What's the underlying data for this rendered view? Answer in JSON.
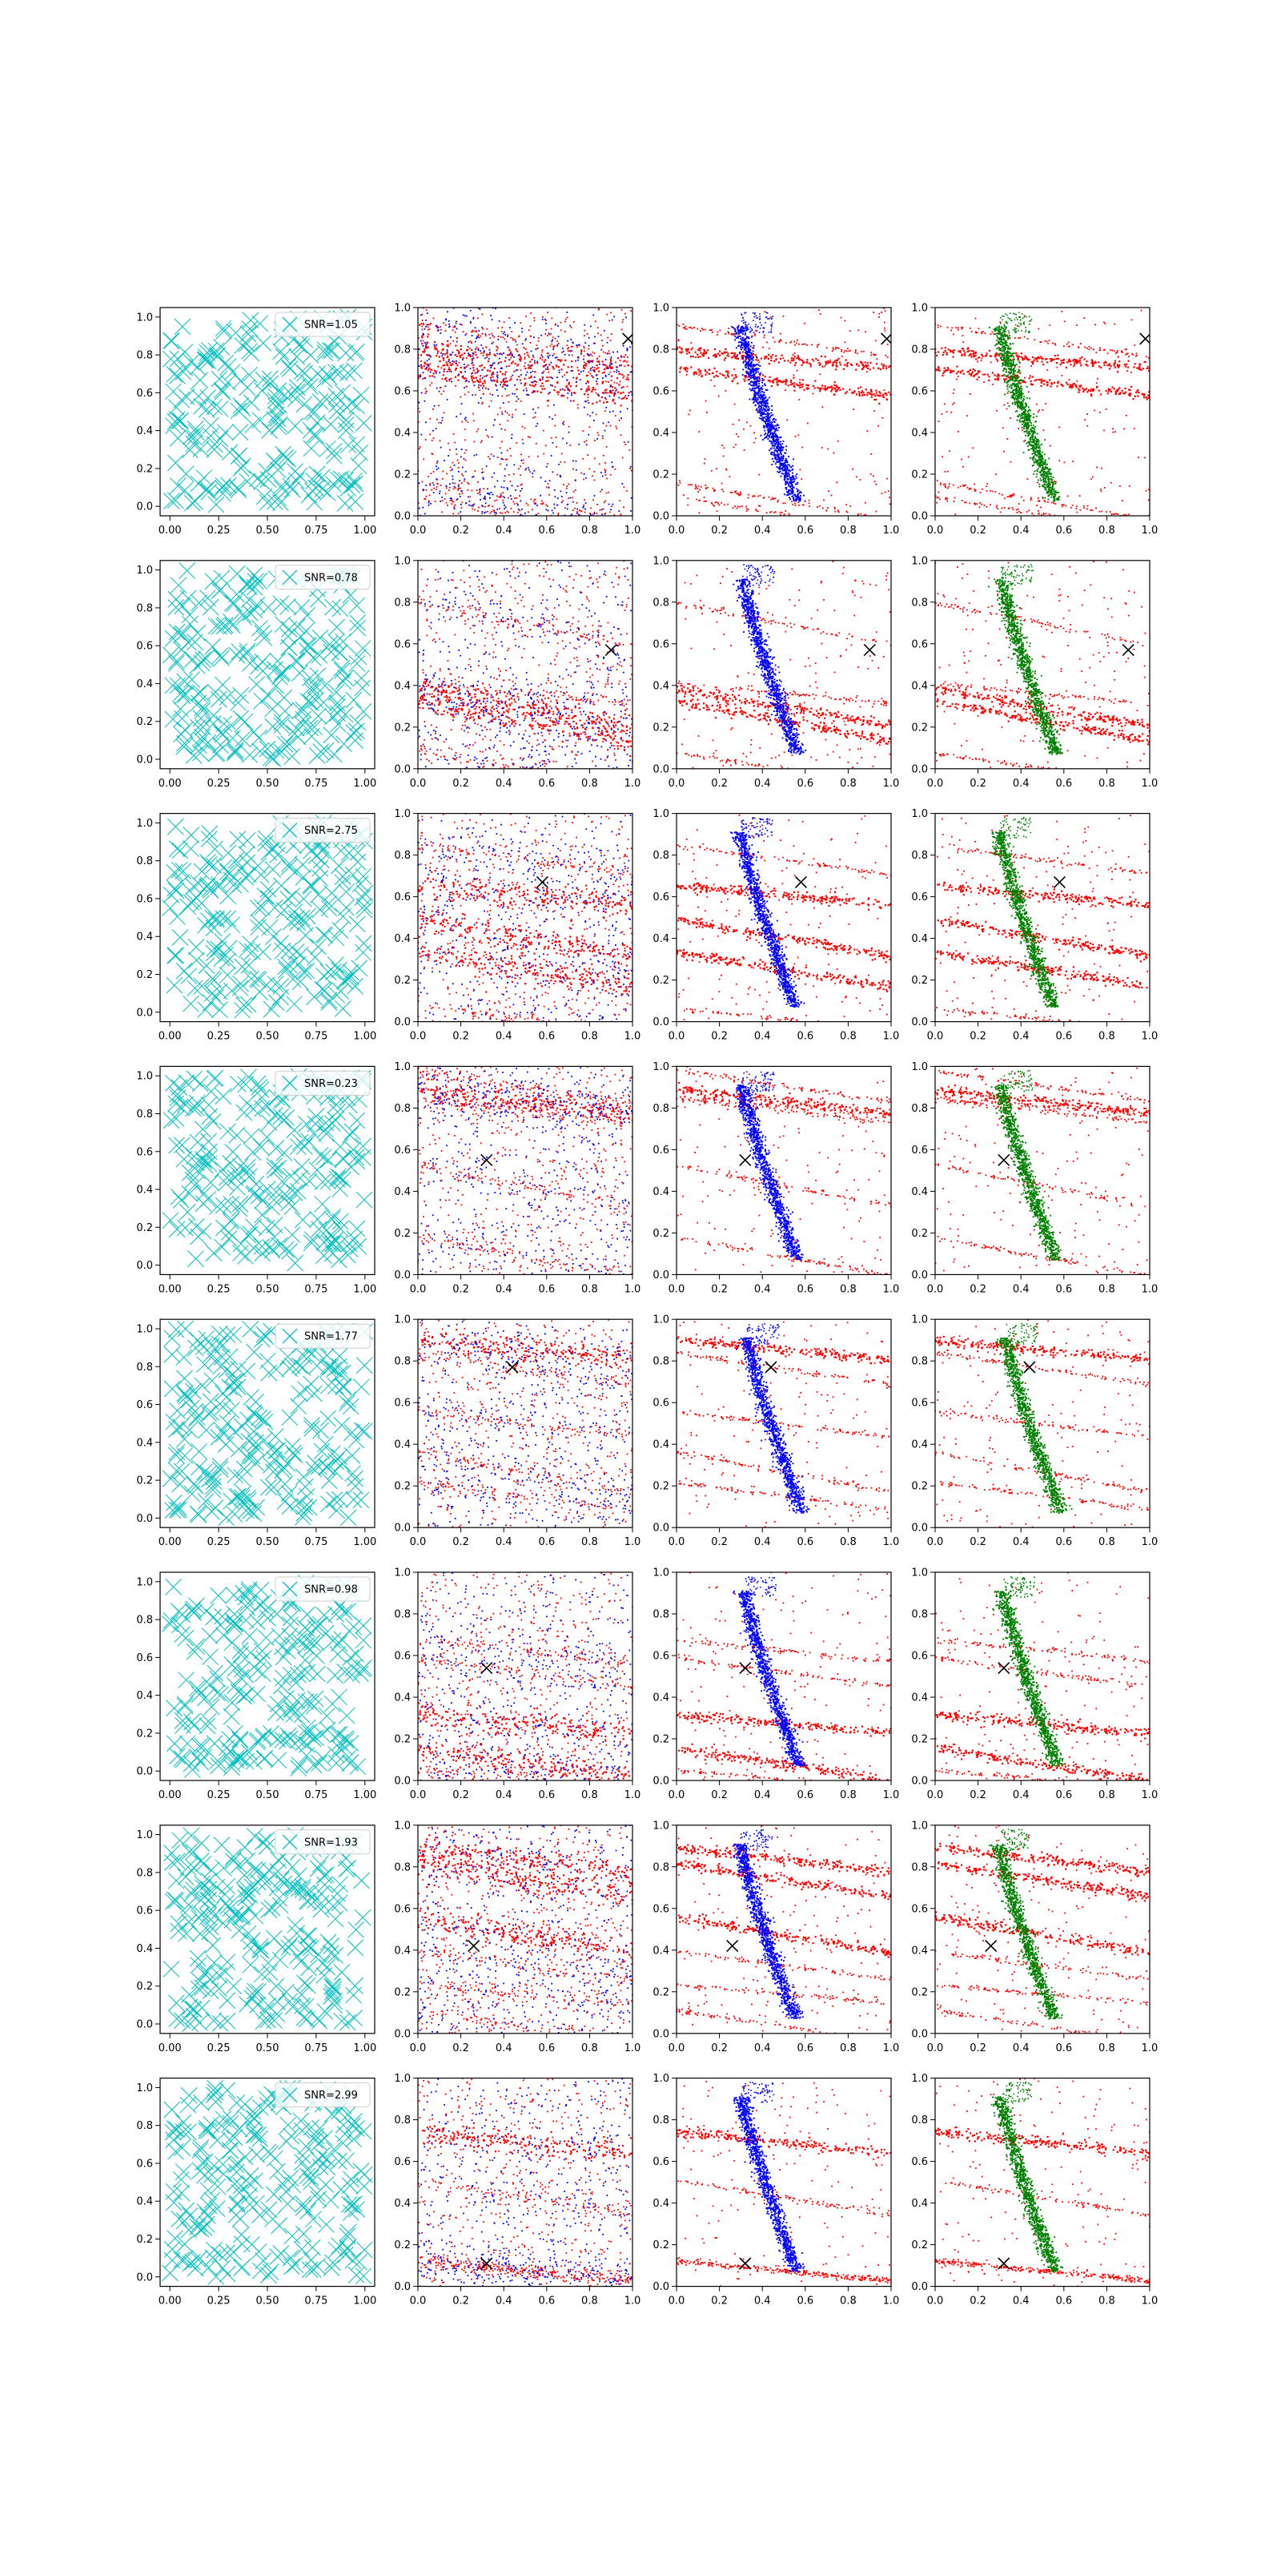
{
  "figure": {
    "rows": 8,
    "columns": 4,
    "colors": {
      "cyan_markers": "#00bfbf",
      "red_points": "#ff0000",
      "blue_points": "#0000ff",
      "green_points": "#008000",
      "black_marker": "#000000"
    },
    "column_panels": [
      {
        "type": "scatter",
        "content": "uniform random cyan x-markers with SNR legend",
        "x_ticks": [
          "0.00",
          "0.25",
          "0.50",
          "0.75",
          "1.00"
        ],
        "y_ticks": [
          "0.0",
          "0.2",
          "0.4",
          "0.6",
          "0.8",
          "1.0"
        ]
      },
      {
        "type": "scatter",
        "content": "red and blue point clouds with diagonal streaks; black x marker",
        "x_ticks": [
          "0.0",
          "0.2",
          "0.4",
          "0.6",
          "0.8",
          "1.0"
        ],
        "y_ticks": [
          "0.0",
          "0.2",
          "0.4",
          "0.6",
          "0.8",
          "1.0"
        ]
      },
      {
        "type": "scatter",
        "content": "red streaks and blue curved track; black x marker",
        "x_ticks": [
          "0.0",
          "0.2",
          "0.4",
          "0.6",
          "0.8",
          "1.0"
        ],
        "y_ticks": [
          "0.0",
          "0.2",
          "0.4",
          "0.6",
          "0.8",
          "1.0"
        ]
      },
      {
        "type": "scatter",
        "content": "red streaks and green curved track; black x marker",
        "x_ticks": [
          "0.0",
          "0.2",
          "0.4",
          "0.6",
          "0.8",
          "1.0"
        ],
        "y_ticks": [
          "0.0",
          "0.2",
          "0.4",
          "0.6",
          "0.8",
          "1.0"
        ]
      }
    ]
  },
  "chart_data": [
    {
      "row": 1,
      "type": "scatter",
      "legend": "SNR=1.05",
      "marker": [
        0.98,
        0.85
      ],
      "xlim": [
        0,
        1
      ],
      "ylim": [
        0,
        1
      ]
    },
    {
      "row": 2,
      "type": "scatter",
      "legend": "SNR=0.78",
      "marker": [
        0.9,
        0.57
      ],
      "xlim": [
        0,
        1
      ],
      "ylim": [
        0,
        1
      ]
    },
    {
      "row": 3,
      "type": "scatter",
      "legend": "SNR=2.75",
      "marker": [
        0.58,
        0.67
      ],
      "xlim": [
        0,
        1
      ],
      "ylim": [
        0,
        1
      ]
    },
    {
      "row": 4,
      "type": "scatter",
      "legend": "SNR=0.23",
      "marker": [
        0.32,
        0.55
      ],
      "xlim": [
        0,
        1
      ],
      "ylim": [
        0,
        1
      ]
    },
    {
      "row": 5,
      "type": "scatter",
      "legend": "SNR=1.77",
      "marker": [
        0.44,
        0.77
      ],
      "xlim": [
        0,
        1
      ],
      "ylim": [
        0,
        1
      ]
    },
    {
      "row": 6,
      "type": "scatter",
      "legend": "SNR=0.98",
      "marker": [
        0.32,
        0.54
      ],
      "xlim": [
        0,
        1
      ],
      "ylim": [
        0,
        1
      ]
    },
    {
      "row": 7,
      "type": "scatter",
      "legend": "SNR=1.93",
      "marker": [
        0.26,
        0.42
      ],
      "xlim": [
        0,
        1
      ],
      "ylim": [
        0,
        1
      ]
    },
    {
      "row": 8,
      "type": "scatter",
      "legend": "SNR=2.99",
      "marker": [
        0.32,
        0.11
      ],
      "xlim": [
        0,
        1
      ],
      "ylim": [
        0,
        1
      ]
    }
  ]
}
